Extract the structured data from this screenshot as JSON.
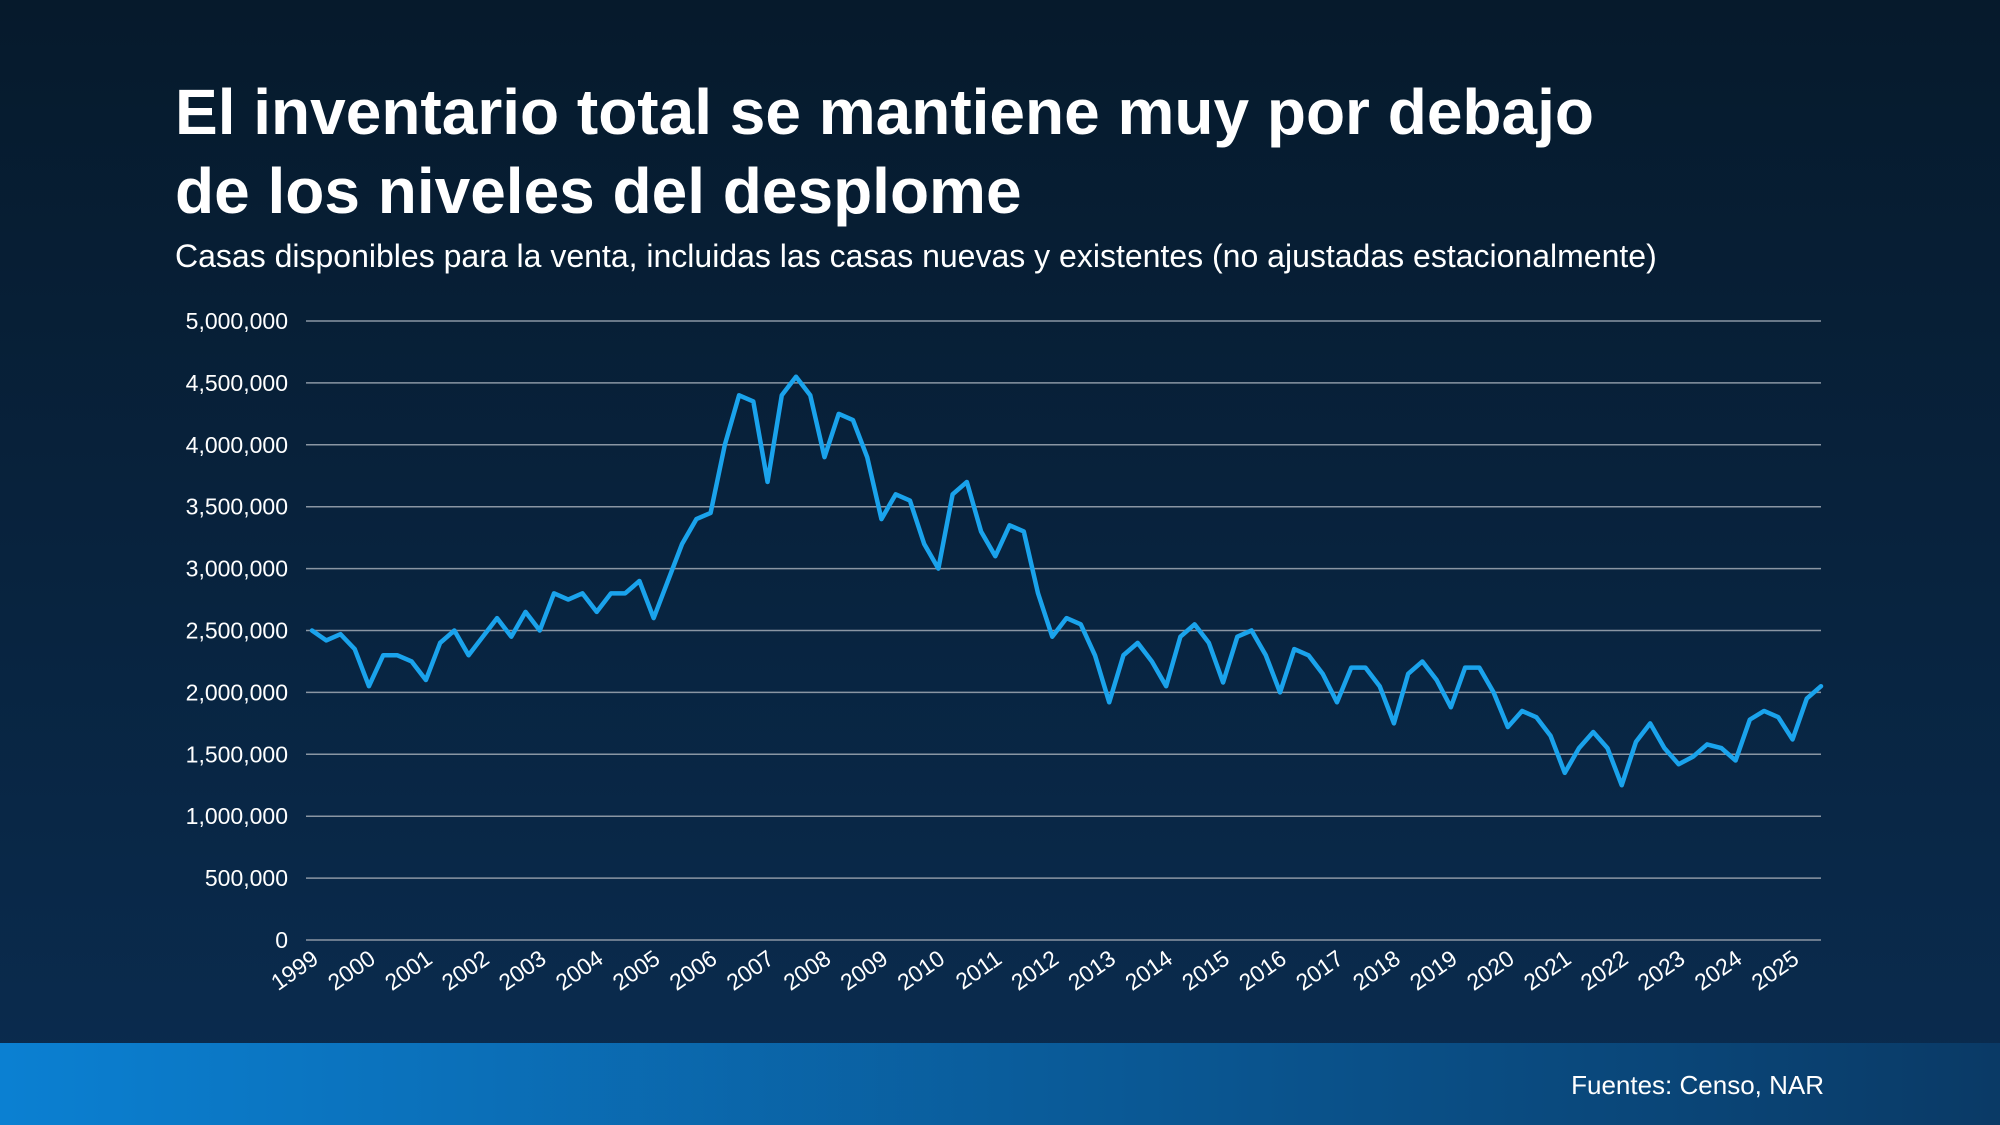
{
  "chart_data": {
    "type": "line",
    "title": [
      "El inventario total se mantiene muy por debajo",
      "de los niveles del desplome"
    ],
    "subtitle": "Casas disponibles para la venta, incluidas las casas nuevas y existentes (no ajustadas estacionalmente)",
    "source": "Fuentes: Censo, NAR",
    "color": "#1aa3ec",
    "grid": true,
    "ylim": [
      0,
      5000000
    ],
    "yticks": [
      0,
      {
        "value": 500000,
        "label": "500,000"
      },
      {
        "value": 1000000,
        "label": "1,000,000"
      },
      {
        "value": 1500000,
        "label": "1,500,000"
      },
      {
        "value": 2000000,
        "label": "2,000,000"
      },
      {
        "value": 2500000,
        "label": "2,500,000"
      },
      {
        "value": 3000000,
        "label": "3,000,000"
      },
      {
        "value": 3500000,
        "label": "3,500,000"
      },
      {
        "value": 4000000,
        "label": "4,000,000"
      },
      {
        "value": 4500000,
        "label": "4,500,000"
      },
      {
        "value": 5000000,
        "label": "5,000,000"
      }
    ],
    "categories": [
      "1999",
      null,
      null,
      null,
      "2000",
      null,
      null,
      null,
      "2001",
      null,
      null,
      null,
      "2002",
      null,
      null,
      null,
      "2003",
      null,
      null,
      null,
      "2004",
      null,
      null,
      null,
      "2005",
      null,
      null,
      null,
      "2006",
      null,
      null,
      null,
      "2007",
      null,
      null,
      null,
      "2008",
      null,
      null,
      null,
      "2009",
      null,
      null,
      null,
      "2010",
      null,
      null,
      null,
      "2011",
      null,
      null,
      null,
      "2012",
      null,
      null,
      null,
      "2013",
      null,
      null,
      null,
      "2014",
      null,
      null,
      null,
      "2015",
      null,
      null,
      null,
      "2016",
      null,
      null,
      null,
      "2017",
      null,
      null,
      null,
      "2018",
      null,
      null,
      null,
      "2019",
      null,
      null,
      null,
      "2020",
      null,
      null,
      null,
      "2021",
      null,
      null,
      null,
      "2022",
      null,
      null,
      null,
      "2023",
      null,
      null,
      null,
      "2024",
      null,
      null,
      null,
      "2025",
      null,
      null
    ],
    "values": [
      2500000,
      2420000,
      2470000,
      2350000,
      2050000,
      2300000,
      2300000,
      2250000,
      2100000,
      2400000,
      2500000,
      2300000,
      2450000,
      2600000,
      2450000,
      2650000,
      2500000,
      2800000,
      2750000,
      2800000,
      2650000,
      2800000,
      2800000,
      2900000,
      2600000,
      2900000,
      3200000,
      3400000,
      3450000,
      4000000,
      4400000,
      4350000,
      3700000,
      4400000,
      4550000,
      4400000,
      3900000,
      4250000,
      4200000,
      3900000,
      3400000,
      3600000,
      3550000,
      3200000,
      3000000,
      3600000,
      3700000,
      3300000,
      3100000,
      3350000,
      3300000,
      2800000,
      2450000,
      2600000,
      2550000,
      2300000,
      1920000,
      2300000,
      2400000,
      2250000,
      2050000,
      2450000,
      2550000,
      2400000,
      2080000,
      2450000,
      2500000,
      2300000,
      2000000,
      2350000,
      2300000,
      2150000,
      1920000,
      2200000,
      2200000,
      2050000,
      1750000,
      2150000,
      2250000,
      2100000,
      1880000,
      2200000,
      2200000,
      2000000,
      1720000,
      1850000,
      1800000,
      1650000,
      1350000,
      1550000,
      1680000,
      1550000,
      1250000,
      1600000,
      1750000,
      1550000,
      1420000,
      1480000,
      1580000,
      1550000,
      1450000,
      1780000,
      1850000,
      1800000,
      1620000,
      1950000,
      2050000
    ]
  }
}
